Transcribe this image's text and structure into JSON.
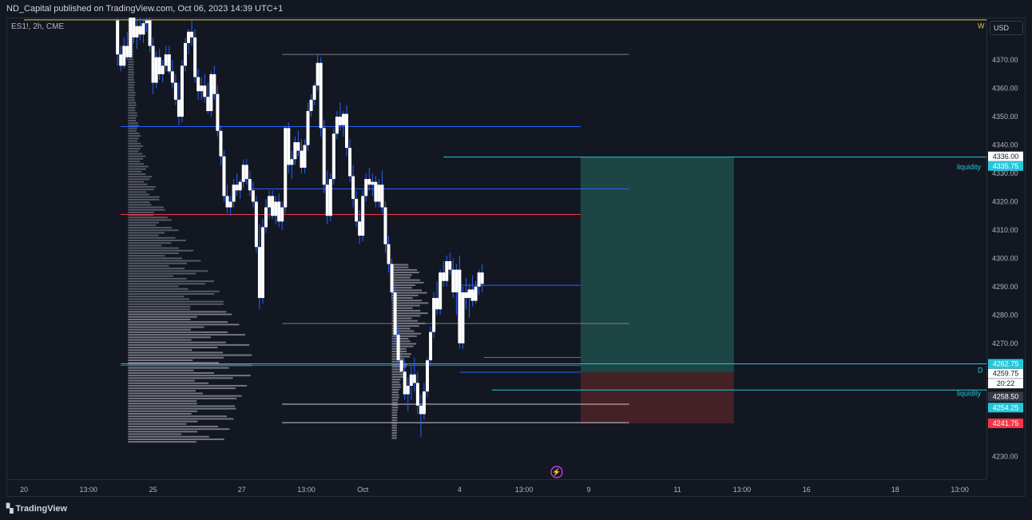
{
  "header": {
    "published": "ND_Capital published on TradingView.com, Oct 06, 2023 14:39 UTC+1"
  },
  "symbol": {
    "label": "ES1!, 2h, CME"
  },
  "currency": "USD",
  "footer": {
    "brand": "TradingView"
  },
  "colors": {
    "background": "#131722",
    "candle": "#ffffff",
    "wick": "#2962ff",
    "profile": "#8c8f99",
    "blue_level": "#2962ff",
    "red_level": "#f23645",
    "cyan_level": "#26c6da",
    "gray_level": "#7a7e88",
    "yellow_level": "#e6c84a",
    "target_zone": "#1f4a47",
    "stop_zone": "#4a2226"
  },
  "chart_data": {
    "type": "candlestick",
    "y_ticks": [
      4370,
      4360,
      4350,
      4340,
      4330,
      4320,
      4310,
      4300,
      4290,
      4280,
      4270,
      4230
    ],
    "ylim": [
      4222,
      4385
    ],
    "x_ticks": [
      {
        "label": "20",
        "x": 0
      },
      {
        "label": "13:00",
        "x": 8
      },
      {
        "label": "25",
        "x": 16
      },
      {
        "label": "27",
        "x": 27
      },
      {
        "label": "13:00",
        "x": 35
      },
      {
        "label": "Oct",
        "x": 42
      },
      {
        "label": "4",
        "x": 54
      },
      {
        "label": "13:00",
        "x": 62
      },
      {
        "label": "9",
        "x": 70
      },
      {
        "label": "11",
        "x": 81
      },
      {
        "label": "13:00",
        "x": 89
      },
      {
        "label": "16",
        "x": 97
      },
      {
        "label": "18",
        "x": 108
      },
      {
        "label": "13:00",
        "x": 116
      }
    ],
    "price_labels": [
      {
        "value": "4336.00",
        "price": 4336.0,
        "bg": "#ffffff",
        "fg": "#131722"
      },
      {
        "value": "4335.75",
        "price": 4332.6,
        "bg": "#26c6da",
        "fg": "#ffffff"
      },
      {
        "value": "4262.75",
        "price": 4262.75,
        "bg": "#26c6da",
        "fg": "#ffffff"
      },
      {
        "value": "4259.75",
        "price": 4259.3,
        "bg": "#ffffff",
        "fg": "#131722"
      },
      {
        "value": "20:22",
        "price": 4255.8,
        "bg": "#ffffff",
        "fg": "#131722"
      },
      {
        "value": "4258.50",
        "price": 4251.2,
        "bg": "#363a45",
        "fg": "#ffffff"
      },
      {
        "value": "4254.25",
        "price": 4247.3,
        "bg": "#26c6da",
        "fg": "#ffffff"
      },
      {
        "value": "4241.75",
        "price": 4241.75,
        "bg": "#f23645",
        "fg": "#ffffff"
      }
    ],
    "annotations": [
      {
        "text": "W",
        "price": 4382,
        "color": "#e6c84a"
      },
      {
        "text": "liquidity",
        "price": 4332.2,
        "color": "#26c6da"
      },
      {
        "text": "D",
        "price": 4260.5,
        "color": "#26c6da"
      },
      {
        "text": "liquidity",
        "price": 4252.3,
        "color": "#26c6da"
      }
    ],
    "levels": [
      {
        "price": 4384.2,
        "x1": 0,
        "x2": 121,
        "color": "#e6c84a"
      },
      {
        "price": 4372,
        "x1": 32,
        "x2": 75,
        "color": "#7a7e88"
      },
      {
        "price": 4346.5,
        "x1": 12,
        "x2": 69,
        "color": "#2962ff"
      },
      {
        "price": 4335.75,
        "x1": 52,
        "x2": 121,
        "color": "#26c6da"
      },
      {
        "price": 4324.5,
        "x1": 28,
        "x2": 75,
        "color": "#2962ff"
      },
      {
        "price": 4315.5,
        "x1": 12,
        "x2": 69,
        "color": "#f23645"
      },
      {
        "price": 4290.5,
        "x1": 54,
        "x2": 69,
        "color": "#2962ff"
      },
      {
        "price": 4277,
        "x1": 32,
        "x2": 75,
        "color": "#7a7e88"
      },
      {
        "price": 4265,
        "x1": 57,
        "x2": 69,
        "color": "#f23645"
      },
      {
        "price": 4262.75,
        "x1": 12,
        "x2": 121,
        "color": "#26c6da"
      },
      {
        "price": 4262.2,
        "x1": 12,
        "x2": 69,
        "color": "#2962ff"
      },
      {
        "price": 4259.8,
        "x1": 54,
        "x2": 69,
        "color": "#2962ff"
      },
      {
        "price": 4253.5,
        "x1": 58,
        "x2": 121,
        "color": "#26c6da"
      },
      {
        "price": 4248.5,
        "x1": 32,
        "x2": 75,
        "color": "#c8cbd2"
      },
      {
        "price": 4242,
        "x1": 32,
        "x2": 75,
        "color": "#c8cbd2"
      }
    ],
    "position": {
      "x1": 69,
      "x2": 88,
      "entry": 4259.75,
      "target": 4335.75,
      "stop": 4241.75
    },
    "candles": [
      [
        11.6,
        4384,
        4392,
        4368,
        4372
      ],
      [
        12.0,
        4372,
        4375,
        4366,
        4368
      ],
      [
        12.4,
        4368,
        4378,
        4367,
        4375
      ],
      [
        12.8,
        4375,
        4380,
        4370,
        4371
      ],
      [
        13.2,
        4371,
        4386,
        4370,
        4385
      ],
      [
        13.6,
        4385,
        4388,
        4376,
        4378
      ],
      [
        14.0,
        4378,
        4384,
        4374,
        4382
      ],
      [
        14.4,
        4382,
        4386,
        4377,
        4379
      ],
      [
        14.8,
        4379,
        4384,
        4376,
        4383
      ],
      [
        15.2,
        4383,
        4389,
        4380,
        4384
      ],
      [
        15.6,
        4384,
        4390,
        4373,
        4375
      ],
      [
        16.0,
        4375,
        4378,
        4358,
        4362
      ],
      [
        16.4,
        4362,
        4373,
        4360,
        4371
      ],
      [
        16.8,
        4371,
        4374,
        4363,
        4365
      ],
      [
        17.2,
        4365,
        4370,
        4362,
        4368
      ],
      [
        17.6,
        4368,
        4375,
        4366,
        4372
      ],
      [
        18.0,
        4372,
        4375,
        4365,
        4366
      ],
      [
        18.4,
        4366,
        4370,
        4360,
        4362
      ],
      [
        18.8,
        4362,
        4365,
        4354,
        4356
      ],
      [
        19.2,
        4356,
        4362,
        4347,
        4350
      ],
      [
        19.6,
        4350,
        4370,
        4348,
        4368
      ],
      [
        20.0,
        4368,
        4378,
        4366,
        4376
      ],
      [
        20.4,
        4376,
        4381,
        4372,
        4380
      ],
      [
        20.8,
        4380,
        4384,
        4375,
        4378
      ],
      [
        21.2,
        4378,
        4381,
        4362,
        4364
      ],
      [
        21.6,
        4364,
        4367,
        4356,
        4359
      ],
      [
        22.0,
        4359,
        4364,
        4356,
        4361
      ],
      [
        22.4,
        4361,
        4365,
        4355,
        4357
      ],
      [
        22.8,
        4357,
        4362,
        4351,
        4352
      ],
      [
        23.2,
        4352,
        4366,
        4350,
        4365
      ],
      [
        23.6,
        4365,
        4368,
        4356,
        4358
      ],
      [
        24.0,
        4358,
        4361,
        4343,
        4345
      ],
      [
        24.4,
        4345,
        4347,
        4333,
        4336
      ],
      [
        24.8,
        4336,
        4338,
        4320,
        4322
      ],
      [
        25.2,
        4322,
        4326,
        4316,
        4318
      ],
      [
        25.6,
        4318,
        4322,
        4315,
        4320
      ],
      [
        26.0,
        4320,
        4328,
        4318,
        4326
      ],
      [
        26.4,
        4326,
        4330,
        4322,
        4324
      ],
      [
        26.8,
        4324,
        4328,
        4321,
        4327
      ],
      [
        27.2,
        4327,
        4335,
        4325,
        4333
      ],
      [
        27.6,
        4333,
        4335,
        4326,
        4328
      ],
      [
        28.0,
        4328,
        4331,
        4322,
        4324
      ],
      [
        28.4,
        4324,
        4327,
        4318,
        4320
      ],
      [
        28.8,
        4320,
        4322,
        4302,
        4304
      ],
      [
        29.2,
        4304,
        4312,
        4282,
        4286
      ],
      [
        29.6,
        4286,
        4314,
        4284,
        4311
      ],
      [
        30.0,
        4311,
        4321,
        4309,
        4318
      ],
      [
        30.4,
        4318,
        4324,
        4314,
        4322
      ],
      [
        30.8,
        4322,
        4324,
        4314,
        4315
      ],
      [
        31.2,
        4315,
        4322,
        4312,
        4320
      ],
      [
        31.6,
        4320,
        4323,
        4311,
        4313
      ],
      [
        32.0,
        4313,
        4320,
        4310,
        4318
      ],
      [
        32.4,
        4318,
        4347,
        4316,
        4346
      ],
      [
        32.8,
        4346,
        4348,
        4330,
        4333
      ],
      [
        33.2,
        4333,
        4338,
        4328,
        4335
      ],
      [
        33.6,
        4335,
        4343,
        4333,
        4341
      ],
      [
        34.0,
        4341,
        4345,
        4336,
        4338
      ],
      [
        34.4,
        4338,
        4342,
        4330,
        4332
      ],
      [
        34.8,
        4332,
        4342,
        4330,
        4340
      ],
      [
        35.2,
        4340,
        4355,
        4338,
        4352
      ],
      [
        35.6,
        4352,
        4358,
        4350,
        4356
      ],
      [
        36.0,
        4356,
        4362,
        4354,
        4361
      ],
      [
        36.4,
        4361,
        4372,
        4359,
        4369
      ],
      [
        36.8,
        4369,
        4371,
        4343,
        4346
      ],
      [
        37.2,
        4346,
        4349,
        4323,
        4326
      ],
      [
        37.6,
        4326,
        4331,
        4312,
        4315
      ],
      [
        38.0,
        4315,
        4330,
        4313,
        4328
      ],
      [
        38.4,
        4328,
        4346,
        4326,
        4344
      ],
      [
        38.8,
        4344,
        4352,
        4342,
        4350
      ],
      [
        39.2,
        4350,
        4355,
        4345,
        4347
      ],
      [
        39.6,
        4347,
        4352,
        4343,
        4351
      ],
      [
        40.0,
        4351,
        4354,
        4336,
        4339
      ],
      [
        40.4,
        4339,
        4342,
        4327,
        4329
      ],
      [
        40.8,
        4329,
        4333,
        4318,
        4321
      ],
      [
        41.2,
        4321,
        4324,
        4311,
        4313
      ],
      [
        41.6,
        4313,
        4317,
        4305,
        4308
      ],
      [
        42.0,
        4308,
        4324,
        4306,
        4322
      ],
      [
        42.4,
        4322,
        4330,
        4320,
        4328
      ],
      [
        42.8,
        4328,
        4332,
        4324,
        4326
      ],
      [
        43.2,
        4326,
        4330,
        4322,
        4327
      ],
      [
        43.6,
        4327,
        4329,
        4318,
        4320
      ],
      [
        44.0,
        4320,
        4328,
        4318,
        4326
      ],
      [
        44.4,
        4326,
        4331,
        4316,
        4318
      ],
      [
        44.8,
        4318,
        4320,
        4302,
        4305
      ],
      [
        45.2,
        4305,
        4308,
        4295,
        4298
      ],
      [
        45.6,
        4298,
        4300,
        4285,
        4288
      ],
      [
        46.0,
        4288,
        4291,
        4270,
        4273
      ],
      [
        46.4,
        4273,
        4276,
        4262,
        4264
      ],
      [
        46.8,
        4264,
        4268,
        4258,
        4260
      ],
      [
        47.2,
        4260,
        4264,
        4250,
        4252
      ],
      [
        47.6,
        4252,
        4258,
        4246,
        4255
      ],
      [
        48.0,
        4255,
        4262,
        4250,
        4259
      ],
      [
        48.4,
        4259,
        4265,
        4253,
        4256
      ],
      [
        48.8,
        4256,
        4260,
        4245,
        4248
      ],
      [
        49.2,
        4248,
        4252,
        4237,
        4245
      ],
      [
        49.6,
        4245,
        4256,
        4243,
        4253
      ],
      [
        50.0,
        4253,
        4265,
        4251,
        4264
      ],
      [
        50.4,
        4264,
        4276,
        4262,
        4274
      ],
      [
        50.8,
        4274,
        4288,
        4272,
        4286
      ],
      [
        51.2,
        4286,
        4292,
        4280,
        4282
      ],
      [
        51.6,
        4282,
        4296,
        4280,
        4295
      ],
      [
        52.0,
        4295,
        4299,
        4290,
        4292
      ],
      [
        52.4,
        4292,
        4301,
        4290,
        4299
      ],
      [
        52.8,
        4299,
        4302,
        4294,
        4296
      ],
      [
        53.2,
        4296,
        4300,
        4286,
        4288
      ],
      [
        53.6,
        4288,
        4298,
        4280,
        4296
      ],
      [
        54.0,
        4296,
        4301,
        4268,
        4270
      ],
      [
        54.4,
        4270,
        4290,
        4268,
        4288
      ],
      [
        54.8,
        4288,
        4293,
        4282,
        4286
      ],
      [
        55.2,
        4286,
        4291,
        4279,
        4289
      ],
      [
        55.6,
        4289,
        4294,
        4283,
        4285
      ],
      [
        56.0,
        4285,
        4292,
        4284,
        4290
      ],
      [
        56.4,
        4290,
        4296,
        4287,
        4295
      ],
      [
        56.8,
        4295,
        4298,
        4288,
        4291
      ]
    ],
    "profile_main": {
      "top": 4384,
      "bottom": 4235,
      "poc": 4262,
      "x_start": 12.9
    },
    "profile_recent": {
      "top": 4298,
      "bottom": 4236,
      "poc": 4284,
      "x_start": 45.6
    }
  }
}
